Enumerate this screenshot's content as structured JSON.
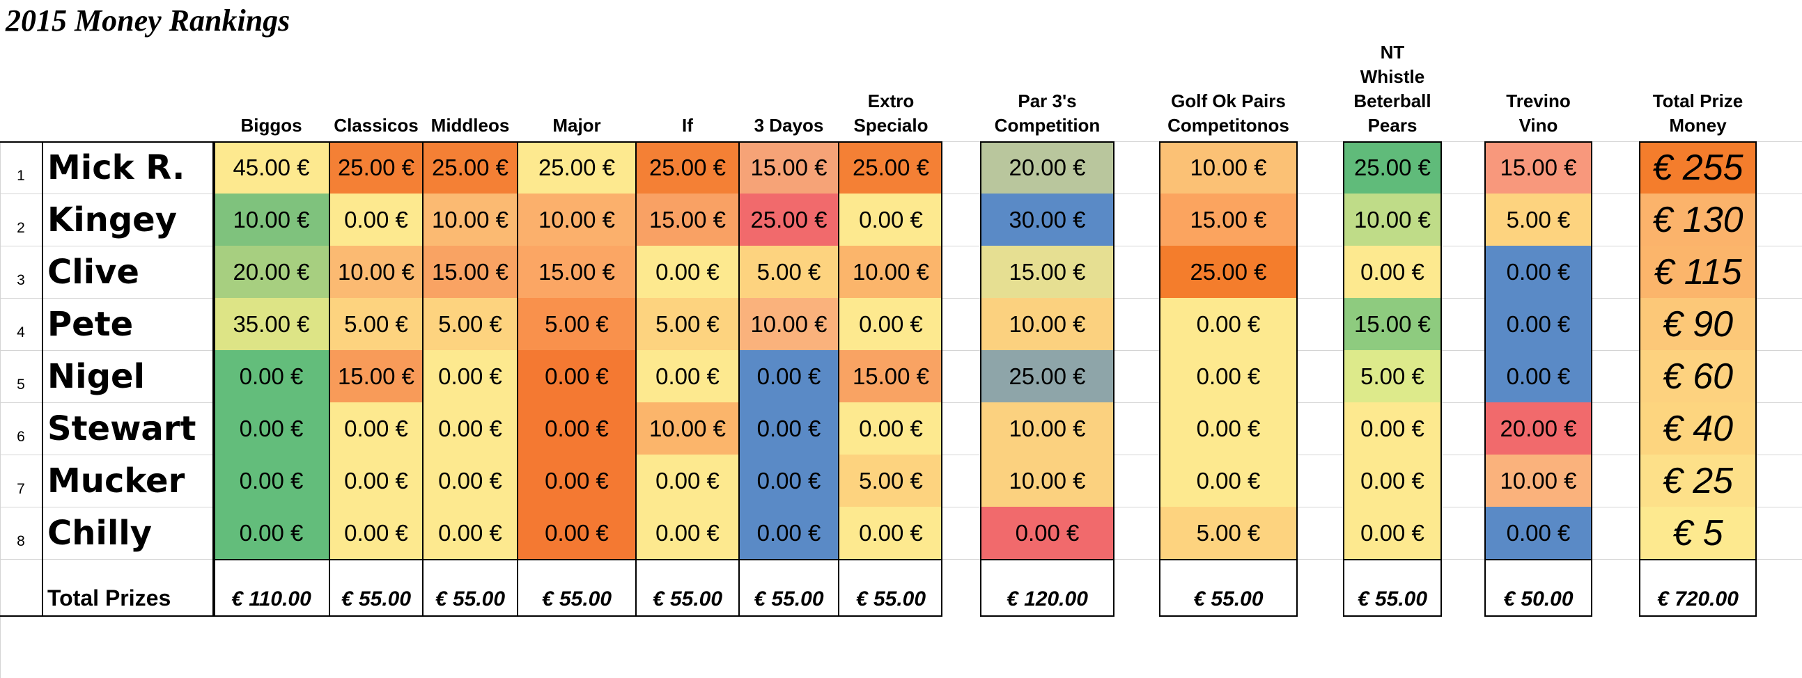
{
  "title": "2015 Money Rankings",
  "columns": [
    {
      "key": "biggos",
      "label": "Biggos"
    },
    {
      "key": "classicos",
      "label": "Classicos"
    },
    {
      "key": "middleos",
      "label": "Middleos"
    },
    {
      "key": "major",
      "label": "Major"
    },
    {
      "key": "if",
      "label": "If"
    },
    {
      "key": "3dayos",
      "label": "3 Dayos"
    },
    {
      "key": "extro",
      "label": "Extro\nSpecialo"
    },
    {
      "key": "par3",
      "label": "Par 3's\nCompetition"
    },
    {
      "key": "golfok",
      "label": "Golf Ok Pairs\nCompetitonos"
    },
    {
      "key": "nt",
      "label": "NT\nWhistle\nBeterball\nPears"
    },
    {
      "key": "trevino",
      "label": "Trevino\nVino"
    },
    {
      "key": "total",
      "label": "Total Prize Money"
    }
  ],
  "rows": [
    {
      "rank": "1",
      "name": "Mick R.",
      "values": [
        "45.00 €",
        "25.00 €",
        "25.00 €",
        "25.00 €",
        "25.00 €",
        "15.00 €",
        "25.00 €",
        "20.00 €",
        "10.00 €",
        "25.00 €",
        "15.00 €"
      ],
      "total": "€ 255"
    },
    {
      "rank": "2",
      "name": "Kingey",
      "values": [
        "10.00 €",
        "0.00 €",
        "10.00 €",
        "10.00 €",
        "15.00 €",
        "25.00 €",
        "0.00 €",
        "30.00 €",
        "15.00 €",
        "10.00 €",
        "5.00 €"
      ],
      "total": "€ 130"
    },
    {
      "rank": "3",
      "name": "Clive",
      "values": [
        "20.00 €",
        "10.00 €",
        "15.00 €",
        "15.00 €",
        "0.00 €",
        "5.00 €",
        "10.00 €",
        "15.00 €",
        "25.00 €",
        "0.00 €",
        "0.00 €"
      ],
      "total": "€ 115"
    },
    {
      "rank": "4",
      "name": "Pete",
      "values": [
        "35.00 €",
        "5.00 €",
        "5.00 €",
        "5.00 €",
        "5.00 €",
        "10.00 €",
        "0.00 €",
        "10.00 €",
        "0.00 €",
        "15.00 €",
        "0.00 €"
      ],
      "total": "€ 90"
    },
    {
      "rank": "5",
      "name": "Nigel",
      "values": [
        "0.00 €",
        "15.00 €",
        "0.00 €",
        "0.00 €",
        "0.00 €",
        "0.00 €",
        "15.00 €",
        "25.00 €",
        "0.00 €",
        "5.00 €",
        "0.00 €"
      ],
      "total": "€ 60"
    },
    {
      "rank": "6",
      "name": "Stewart",
      "values": [
        "0.00 €",
        "0.00 €",
        "0.00 €",
        "0.00 €",
        "10.00 €",
        "0.00 €",
        "0.00 €",
        "10.00 €",
        "0.00 €",
        "0.00 €",
        "20.00 €"
      ],
      "total": "€ 40"
    },
    {
      "rank": "7",
      "name": "Mucker",
      "values": [
        "0.00 €",
        "0.00 €",
        "0.00 €",
        "0.00 €",
        "0.00 €",
        "0.00 €",
        "5.00 €",
        "10.00 €",
        "0.00 €",
        "0.00 €",
        "10.00 €"
      ],
      "total": "€ 25"
    },
    {
      "rank": "8",
      "name": "Chilly",
      "values": [
        "0.00 €",
        "0.00 €",
        "0.00 €",
        "0.00 €",
        "0.00 €",
        "0.00 €",
        "0.00 €",
        "0.00 €",
        "5.00 €",
        "0.00 €",
        "0.00 €"
      ],
      "total": "€ 5"
    }
  ],
  "colors": [
    [
      "#fde98f",
      "#f48035",
      "#f48035",
      "#fde98f",
      "#f48035",
      "#f6a377",
      "#f48035",
      "#b9c69d",
      "#fbc175",
      "#60bb7a",
      "#f8987c"
    ],
    [
      "#7fc27d",
      "#fde98f",
      "#fbba72",
      "#fbb06c",
      "#f9a164",
      "#f16a6c",
      "#fde98f",
      "#5a8ac6",
      "#fba45f",
      "#bfdc88",
      "#fdd37f"
    ],
    [
      "#a7cf80",
      "#fbba72",
      "#f9a363",
      "#fba664",
      "#fde98f",
      "#fdd37f",
      "#fbb56b",
      "#e6df92",
      "#f47d2c",
      "#fde98f",
      "#5a8ac6"
    ],
    [
      "#dde486",
      "#fdd37f",
      "#fdd37f",
      "#f9914c",
      "#fdd37f",
      "#fab27c",
      "#fde98f",
      "#fbd17f",
      "#fde98f",
      "#8ecb7f",
      "#5a8ac6"
    ],
    [
      "#63bd7b",
      "#f89b59",
      "#fde98f",
      "#f47932",
      "#fde98f",
      "#5a8ac6",
      "#f9a363",
      "#8ea5a9",
      "#fde98f",
      "#ddea8b",
      "#5a8ac6"
    ],
    [
      "#63bd7b",
      "#fde98f",
      "#fde98f",
      "#f47932",
      "#fbb56b",
      "#5a8ac6",
      "#fde98f",
      "#fbd17f",
      "#fde98f",
      "#fde98f",
      "#f16a6c"
    ],
    [
      "#63bd7b",
      "#fde98f",
      "#fde98f",
      "#f47932",
      "#fde98f",
      "#5a8ac6",
      "#fdd37f",
      "#fbd17f",
      "#fde98f",
      "#fde98f",
      "#fab27c"
    ],
    [
      "#63bd7b",
      "#fde98f",
      "#fde98f",
      "#f47932",
      "#fde98f",
      "#5a8ac6",
      "#fde98f",
      "#f16a6c",
      "#fdd37f",
      "#fde98f",
      "#5a8ac6"
    ]
  ],
  "total_colors": [
    "#f47d2c",
    "#fbb36b",
    "#fbb56b",
    "#fcc878",
    "#fdd27f",
    "#fdd57f",
    "#fde089",
    "#fde98f"
  ],
  "totals": {
    "label": "Total Prizes",
    "values": [
      "€ 110.00",
      "€ 55.00",
      "€ 55.00",
      "€ 55.00",
      "€ 55.00",
      "€ 55.00",
      "€ 55.00",
      "€ 120.00",
      "€ 55.00",
      "€ 55.00",
      "€ 50.00",
      "€ 720.00"
    ]
  }
}
